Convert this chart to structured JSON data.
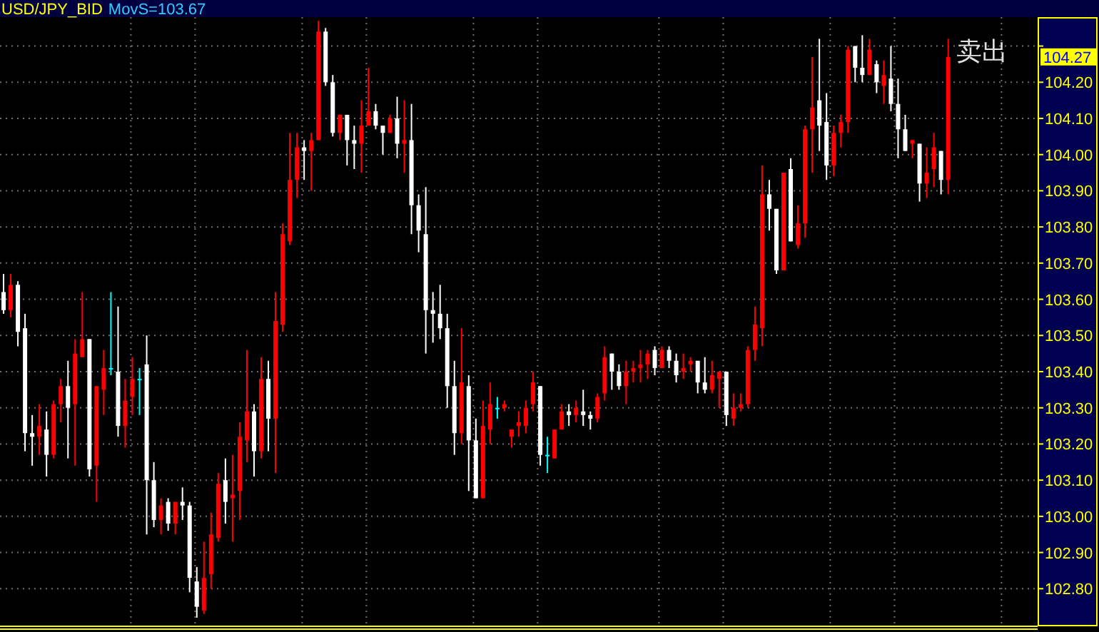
{
  "chart_data": {
    "type": "candlestick",
    "title": "USD/JPY_BID",
    "subtitle": "MovS=103.67",
    "annotations": [
      "卖出",
      {
        "text": "104.27",
        "y": 104.27
      }
    ],
    "categories": [
      null,
      null,
      null,
      null,
      null,
      null,
      null,
      null,
      null,
      null,
      null,
      null,
      null,
      null,
      null,
      null,
      null,
      null,
      null,
      null,
      null,
      null,
      null,
      null,
      null,
      null,
      null,
      null,
      null,
      null,
      null,
      null,
      null,
      null,
      null,
      null,
      null,
      null,
      null,
      null,
      null,
      null,
      null,
      null,
      null,
      null,
      null,
      null,
      null,
      null,
      null,
      null,
      null,
      null,
      null,
      null,
      null,
      null,
      null,
      null,
      null,
      null,
      null,
      null,
      null,
      null,
      null,
      null,
      null,
      null,
      null,
      null,
      null,
      null,
      null,
      null,
      null,
      null,
      null,
      null,
      null,
      null,
      null,
      null,
      null,
      null,
      null,
      null,
      null,
      null,
      null,
      null,
      null,
      null,
      null,
      null,
      null,
      null,
      null,
      null,
      null,
      null,
      null,
      null,
      null,
      null,
      null,
      null,
      null,
      null,
      null,
      null,
      null,
      null,
      null,
      null,
      null,
      null,
      null,
      null,
      null,
      null,
      null,
      null,
      null,
      null,
      null,
      null,
      null,
      null,
      null,
      null,
      null,
      null,
      null,
      null,
      null,
      null,
      null,
      null,
      null,
      null,
      null,
      null,
      null
    ],
    "ohlc": [
      [
        103.62,
        103.67,
        103.56,
        103.57
      ],
      [
        103.57,
        103.67,
        103.55,
        103.64
      ],
      [
        103.64,
        103.65,
        103.47,
        103.51
      ],
      [
        103.52,
        103.56,
        103.18,
        103.23
      ],
      [
        103.23,
        103.28,
        103.14,
        103.22
      ],
      [
        103.22,
        103.31,
        103.17,
        103.25
      ],
      [
        103.24,
        103.29,
        103.11,
        103.17
      ],
      [
        103.17,
        103.32,
        103.16,
        103.31
      ],
      [
        103.31,
        103.38,
        103.26,
        103.36
      ],
      [
        103.36,
        103.43,
        103.16,
        103.3
      ],
      [
        103.31,
        103.49,
        103.14,
        103.45
      ],
      [
        103.44,
        103.62,
        103.44,
        103.49
      ],
      [
        103.49,
        103.49,
        103.11,
        103.13
      ],
      [
        103.14,
        103.36,
        103.04,
        103.36
      ],
      [
        103.35,
        103.46,
        103.28,
        103.41
      ],
      [
        103.41,
        103.62,
        103.39,
        103.41
      ],
      [
        103.4,
        103.58,
        103.22,
        103.25
      ],
      [
        103.25,
        103.38,
        103.19,
        103.32
      ],
      [
        103.33,
        103.44,
        103.28,
        103.38
      ],
      [
        103.38,
        103.41,
        103.28,
        103.38
      ],
      [
        103.42,
        103.5,
        102.95,
        103.1
      ],
      [
        103.1,
        103.15,
        102.97,
        102.99
      ],
      [
        102.99,
        103.05,
        102.95,
        103.03
      ],
      [
        103.04,
        103.05,
        102.96,
        102.98
      ],
      [
        102.98,
        103.04,
        102.95,
        103.04
      ],
      [
        103.04,
        103.08,
        102.99,
        103.03
      ],
      [
        103.03,
        103.04,
        102.79,
        102.83
      ],
      [
        102.82,
        102.86,
        102.72,
        102.75
      ],
      [
        102.74,
        102.93,
        102.73,
        102.83
      ],
      [
        102.84,
        103.01,
        102.8,
        102.95
      ],
      [
        102.94,
        103.12,
        102.93,
        103.09
      ],
      [
        103.1,
        103.16,
        102.98,
        103.04
      ],
      [
        103.05,
        103.17,
        102.93,
        103.06
      ],
      [
        103.07,
        103.26,
        102.99,
        103.22
      ],
      [
        103.21,
        103.46,
        103.15,
        103.29
      ],
      [
        103.29,
        103.31,
        103.11,
        103.18
      ],
      [
        103.18,
        103.44,
        103.16,
        103.38
      ],
      [
        103.38,
        103.43,
        103.18,
        103.27
      ],
      [
        103.27,
        103.62,
        103.12,
        103.54
      ],
      [
        103.53,
        103.81,
        103.51,
        103.78
      ],
      [
        103.76,
        104.06,
        103.75,
        103.93
      ],
      [
        103.93,
        104.06,
        103.88,
        104.02
      ],
      [
        104.02,
        104.04,
        103.93,
        104.01
      ],
      [
        104.01,
        104.06,
        103.9,
        104.04
      ],
      [
        104.04,
        104.37,
        104.04,
        104.34
      ],
      [
        104.34,
        104.35,
        104.19,
        104.2
      ],
      [
        104.2,
        104.22,
        104.05,
        104.06
      ],
      [
        104.06,
        104.11,
        104.04,
        104.11
      ],
      [
        104.11,
        104.11,
        103.97,
        104.04
      ],
      [
        104.04,
        104.08,
        103.96,
        104.03
      ],
      [
        104.03,
        104.15,
        103.95,
        104.08
      ],
      [
        104.08,
        104.24,
        104.08,
        104.12
      ],
      [
        104.12,
        104.14,
        104.07,
        104.08
      ],
      [
        104.08,
        104.08,
        104.0,
        104.06
      ],
      [
        104.06,
        104.11,
        104.06,
        104.1
      ],
      [
        104.1,
        104.16,
        103.99,
        104.03
      ],
      [
        104.03,
        104.15,
        103.95,
        104.04
      ],
      [
        104.04,
        104.14,
        103.78,
        103.86
      ],
      [
        103.86,
        103.89,
        103.73,
        103.79
      ],
      [
        103.78,
        103.91,
        103.45,
        103.57
      ],
      [
        103.57,
        103.62,
        103.48,
        103.56
      ],
      [
        103.56,
        103.64,
        103.49,
        103.52
      ],
      [
        103.52,
        103.56,
        103.3,
        103.36
      ],
      [
        103.36,
        103.43,
        103.17,
        103.23
      ],
      [
        103.23,
        103.52,
        103.2,
        103.37
      ],
      [
        103.36,
        103.39,
        103.07,
        103.21
      ],
      [
        103.21,
        103.27,
        103.05,
        103.05
      ],
      [
        103.05,
        103.32,
        103.05,
        103.25
      ],
      [
        103.24,
        103.37,
        103.2,
        103.31
      ],
      [
        103.3,
        103.33,
        103.27,
        103.3
      ],
      [
        103.3,
        103.32,
        103.29,
        103.31
      ],
      [
        103.22,
        103.24,
        103.19,
        103.24
      ],
      [
        103.25,
        103.29,
        103.22,
        103.26
      ],
      [
        103.25,
        103.32,
        103.23,
        103.3
      ],
      [
        103.31,
        103.4,
        103.29,
        103.37
      ],
      [
        103.36,
        103.36,
        103.14,
        103.17
      ],
      [
        103.17,
        103.22,
        103.12,
        103.17
      ],
      [
        103.16,
        103.24,
        103.16,
        103.24
      ],
      [
        103.24,
        103.31,
        103.24,
        103.29
      ],
      [
        103.29,
        103.31,
        103.25,
        103.28
      ],
      [
        103.28,
        103.32,
        103.26,
        103.3
      ],
      [
        103.29,
        103.35,
        103.25,
        103.28
      ],
      [
        103.28,
        103.29,
        103.24,
        103.27
      ],
      [
        103.27,
        103.34,
        103.26,
        103.33
      ],
      [
        103.34,
        103.47,
        103.32,
        103.44
      ],
      [
        103.45,
        103.45,
        103.35,
        103.4
      ],
      [
        103.4,
        103.42,
        103.35,
        103.36
      ],
      [
        103.36,
        103.43,
        103.31,
        103.4
      ],
      [
        103.4,
        103.43,
        103.37,
        103.41
      ],
      [
        103.41,
        103.46,
        103.37,
        103.42
      ],
      [
        103.42,
        103.46,
        103.38,
        103.45
      ],
      [
        103.46,
        103.47,
        103.39,
        103.41
      ],
      [
        103.41,
        103.47,
        103.41,
        103.46
      ],
      [
        103.46,
        103.47,
        103.41,
        103.43
      ],
      [
        103.43,
        103.45,
        103.37,
        103.39
      ],
      [
        103.4,
        103.45,
        103.38,
        103.41
      ],
      [
        103.42,
        103.44,
        103.4,
        103.43
      ],
      [
        103.43,
        103.43,
        103.34,
        103.37
      ],
      [
        103.37,
        103.44,
        103.34,
        103.35
      ],
      [
        103.35,
        103.43,
        103.34,
        103.39
      ],
      [
        103.38,
        103.4,
        103.3,
        103.4
      ],
      [
        103.4,
        103.4,
        103.25,
        103.28
      ],
      [
        103.27,
        103.34,
        103.25,
        103.3
      ],
      [
        103.3,
        103.34,
        103.29,
        103.31
      ],
      [
        103.31,
        103.47,
        103.3,
        103.46
      ],
      [
        103.46,
        103.58,
        103.43,
        103.53
      ],
      [
        103.52,
        103.97,
        103.47,
        103.89
      ],
      [
        103.89,
        103.93,
        103.79,
        103.85
      ],
      [
        103.85,
        103.85,
        103.67,
        103.68
      ],
      [
        103.68,
        103.95,
        103.68,
        103.95
      ],
      [
        103.96,
        103.99,
        103.76,
        103.76
      ],
      [
        103.75,
        103.86,
        103.74,
        103.81
      ],
      [
        103.81,
        104.08,
        103.77,
        104.07
      ],
      [
        104.07,
        104.27,
        103.95,
        104.13
      ],
      [
        104.15,
        104.32,
        104.01,
        104.08
      ],
      [
        104.09,
        104.17,
        103.93,
        103.97
      ],
      [
        103.97,
        104.08,
        103.94,
        104.06
      ],
      [
        104.06,
        104.11,
        104.02,
        104.09
      ],
      [
        104.09,
        104.3,
        104.06,
        104.29
      ],
      [
        104.3,
        104.3,
        104.2,
        104.24
      ],
      [
        104.24,
        104.33,
        104.2,
        104.22
      ],
      [
        104.22,
        104.32,
        104.22,
        104.29
      ],
      [
        104.25,
        104.26,
        104.17,
        104.2
      ],
      [
        104.19,
        104.26,
        104.14,
        104.22
      ],
      [
        104.21,
        104.3,
        104.12,
        104.14
      ],
      [
        104.14,
        104.21,
        103.99,
        104.07
      ],
      [
        104.07,
        104.11,
        104.01,
        104.01
      ],
      [
        104.03,
        104.04,
        103.99,
        104.04
      ],
      [
        104.03,
        104.03,
        103.87,
        103.92
      ],
      [
        103.92,
        104.02,
        103.88,
        103.95
      ],
      [
        103.96,
        104.06,
        103.91,
        104.02
      ],
      [
        104.01,
        104.01,
        103.89,
        103.93
      ],
      [
        103.93,
        104.32,
        103.89,
        104.27
      ],
      null,
      null,
      null,
      null,
      null,
      null,
      null,
      null,
      null,
      null,
      null,
      null
    ],
    "colors": [
      "#ffffff",
      "#ff0000",
      "#ffffff",
      "#ffffff",
      "#ffffff",
      "#ff0000",
      "#ffffff",
      "#ff0000",
      "#ff0000",
      "#ffffff",
      "#ff0000",
      "#ff0000",
      "#ffffff",
      "#ff0000",
      "#ff0000",
      "#00ffff",
      "#ffffff",
      "#ff0000",
      "#ff0000",
      "#00ffff",
      "#ffffff",
      "#ffffff",
      "#ff0000",
      "#ffffff",
      "#ff0000",
      "#ffffff",
      "#ffffff",
      "#ffffff",
      "#ff0000",
      "#ff0000",
      "#ff0000",
      "#ffffff",
      "#ff0000",
      "#ff0000",
      "#ff0000",
      "#ffffff",
      "#ff0000",
      "#ffffff",
      "#ff0000",
      "#ff0000",
      "#ff0000",
      "#ff0000",
      "#ffffff",
      "#ff0000",
      "#ff0000",
      "#ffffff",
      "#ffffff",
      "#ff0000",
      "#ffffff",
      "#ffffff",
      "#ff0000",
      "#ff0000",
      "#ffffff",
      "#ffffff",
      "#ff0000",
      "#ffffff",
      "#ff0000",
      "#ffffff",
      "#ffffff",
      "#ffffff",
      "#ffffff",
      "#ffffff",
      "#ffffff",
      "#ffffff",
      "#ff0000",
      "#ffffff",
      "#ffffff",
      "#ff0000",
      "#ff0000",
      "#00ffff",
      "#ff0000",
      "#ff0000",
      "#ff0000",
      "#ff0000",
      "#ff0000",
      "#ffffff",
      "#00ffff",
      "#ff0000",
      "#ff0000",
      "#ffffff",
      "#ff0000",
      "#ffffff",
      "#ffffff",
      "#ff0000",
      "#ff0000",
      "#ffffff",
      "#ffffff",
      "#ff0000",
      "#ff0000",
      "#ff0000",
      "#ff0000",
      "#ffffff",
      "#ff0000",
      "#ffffff",
      "#ffffff",
      "#ff0000",
      "#ff0000",
      "#ffffff",
      "#ffffff",
      "#ff0000",
      "#ff0000",
      "#ffffff",
      "#ff0000",
      "#ff0000",
      "#ff0000",
      "#ff0000",
      "#ff0000",
      "#ffffff",
      "#ffffff",
      "#ff0000",
      "#ffffff",
      "#ff0000",
      "#ff0000",
      "#ff0000",
      "#ffffff",
      "#ffffff",
      "#ff0000",
      "#ff0000",
      "#ff0000",
      "#ffffff",
      "#ffffff",
      "#ff0000",
      "#ffffff",
      "#ff0000",
      "#ffffff",
      "#ffffff",
      "#ffffff",
      "#ff0000",
      "#ffffff",
      "#ff0000",
      "#ff0000",
      "#ffffff",
      "#ff0000",
      null,
      null,
      null,
      null,
      null,
      null,
      null,
      null,
      null,
      null,
      null,
      null
    ],
    "ylim": [
      102.7,
      104.38
    ],
    "yticks": [
      {
        "value": 102.8,
        "label": "102.80"
      },
      {
        "value": 102.9,
        "label": "102.90"
      },
      {
        "value": 103.0,
        "label": "103.00"
      },
      {
        "value": 103.1,
        "label": "103.10"
      },
      {
        "value": 103.2,
        "label": "103.20"
      },
      {
        "value": 103.3,
        "label": "103.30"
      },
      {
        "value": 103.4,
        "label": "103.40"
      },
      {
        "value": 103.5,
        "label": "103.50"
      },
      {
        "value": 103.6,
        "label": "103.60"
      },
      {
        "value": 103.7,
        "label": "103.70"
      },
      {
        "value": 103.8,
        "label": "103.80"
      },
      {
        "value": 103.9,
        "label": "103.90"
      },
      {
        "value": 104.0,
        "label": "104.00"
      },
      {
        "value": 104.1,
        "label": "104.10"
      },
      {
        "value": 104.2,
        "label": "104.20"
      },
      {
        "value": 104.3,
        "label": null
      }
    ],
    "grid": true
  }
}
